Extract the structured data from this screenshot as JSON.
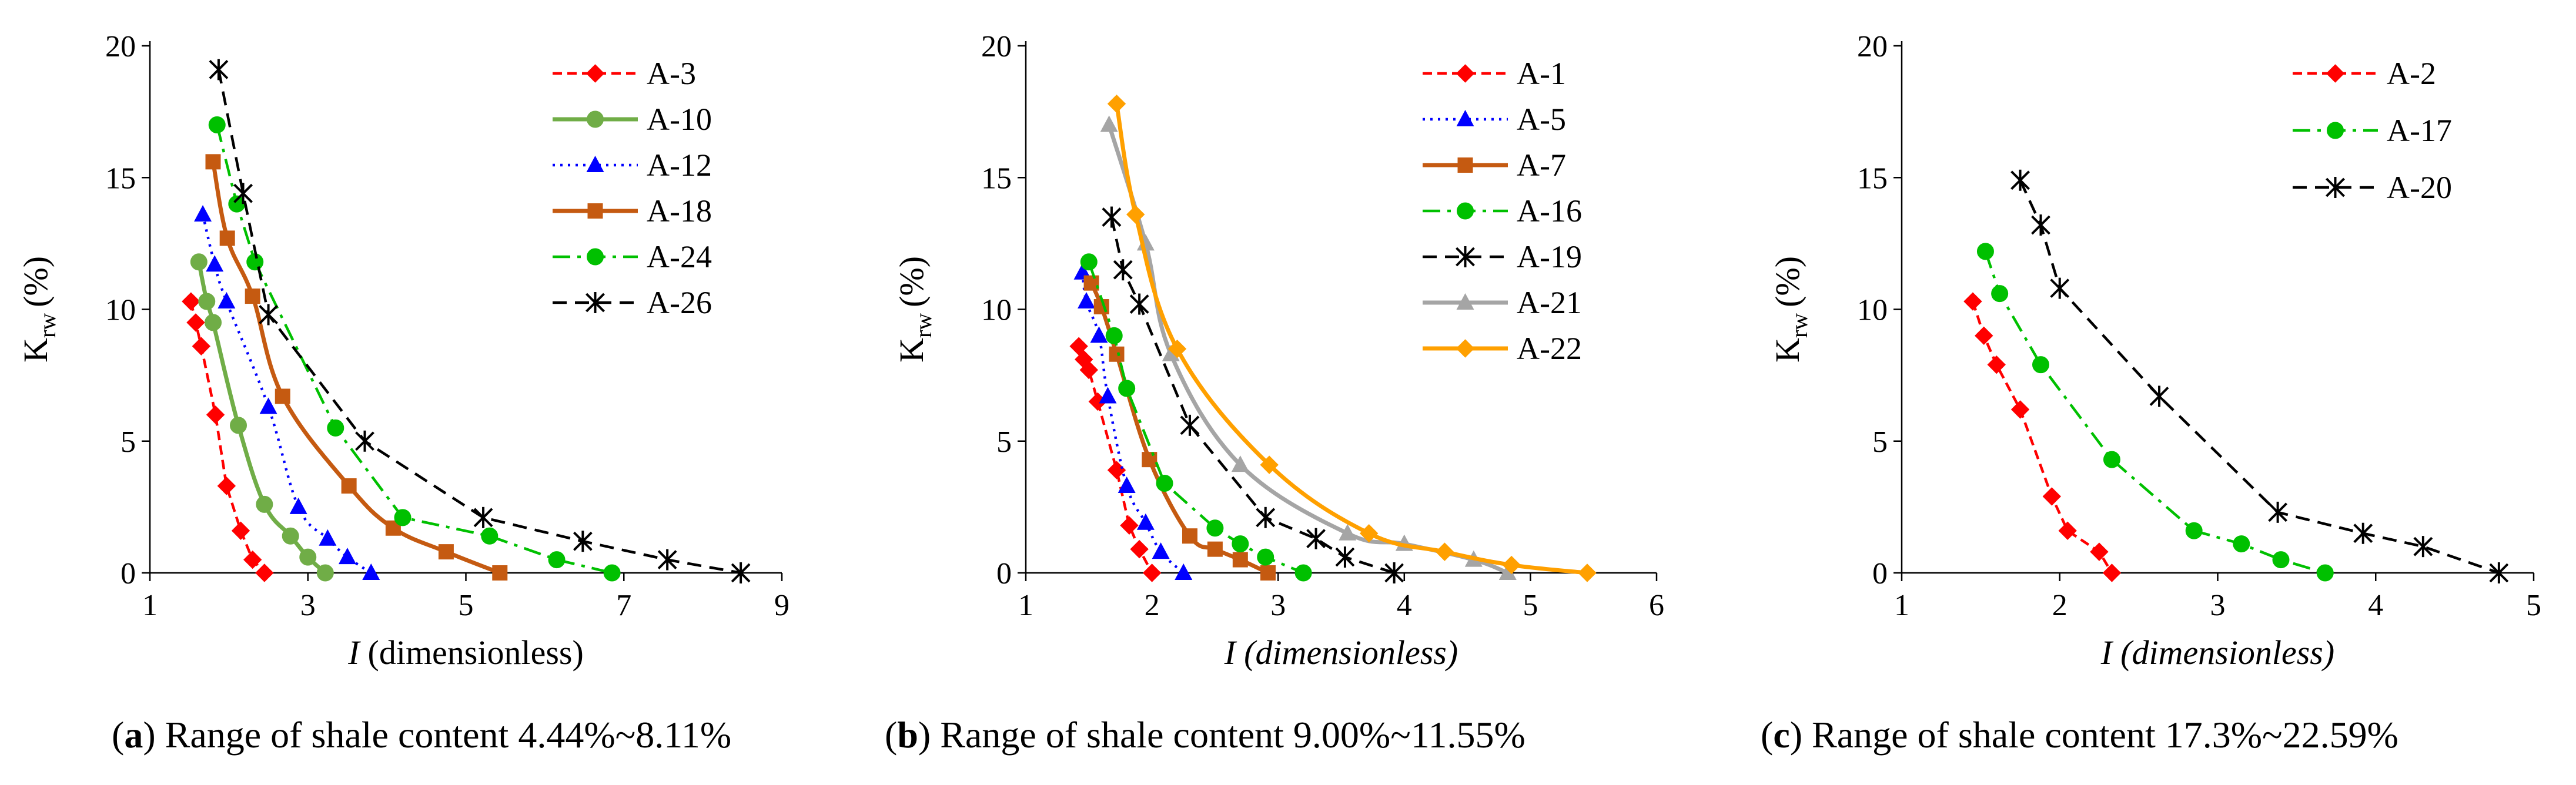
{
  "chart_data": [
    {
      "type": "line",
      "panel": "a",
      "caption_letter": "a",
      "caption_text": "Range of shale content 4.44%~8.11%",
      "ylabel": "K",
      "ylabel_sub": "rw",
      "ylabel_unit": "(%)",
      "xlabel_var": "I",
      "xlabel_rest": "(dimensionless)",
      "xlabel_italic_rest": false,
      "xlim": [
        1,
        9
      ],
      "ylim": [
        0,
        20
      ],
      "xticks": [
        1,
        3,
        5,
        7,
        9
      ],
      "yticks": [
        0,
        5,
        10,
        15,
        20
      ],
      "legend_position": "top-right",
      "series": [
        {
          "name": "A-3",
          "color": "#ff0000",
          "dash": "dash-short",
          "marker": "diamond",
          "smooth": false,
          "x": [
            1.52,
            1.58,
            1.65,
            1.83,
            1.97,
            2.15,
            2.3,
            2.45
          ],
          "y": [
            10.3,
            9.5,
            8.6,
            6.0,
            3.3,
            1.6,
            0.5,
            0.0
          ]
        },
        {
          "name": "A-10",
          "color": "#70ad47",
          "dash": "solid",
          "marker": "circle",
          "smooth": true,
          "x": [
            1.62,
            1.72,
            1.8,
            2.12,
            2.45,
            2.78,
            3.0,
            3.22
          ],
          "y": [
            11.8,
            10.3,
            9.5,
            5.6,
            2.6,
            1.4,
            0.6,
            0.0
          ]
        },
        {
          "name": "A-12",
          "color": "#0000ff",
          "dash": "dotted",
          "marker": "triangle",
          "smooth": true,
          "x": [
            1.67,
            1.82,
            1.97,
            2.5,
            2.88,
            3.25,
            3.5,
            3.8
          ],
          "y": [
            13.6,
            11.7,
            10.3,
            6.3,
            2.5,
            1.3,
            0.6,
            0.0
          ]
        },
        {
          "name": "A-18",
          "color": "#c55a11",
          "dash": "solid",
          "marker": "square",
          "smooth": true,
          "x": [
            1.8,
            1.98,
            2.3,
            2.68,
            3.52,
            4.08,
            4.75,
            5.43
          ],
          "y": [
            15.6,
            12.7,
            10.5,
            6.7,
            3.3,
            1.7,
            0.8,
            0.0
          ]
        },
        {
          "name": "A-24",
          "color": "#00c000",
          "dash": "dashdot",
          "marker": "circle",
          "smooth": false,
          "x": [
            1.85,
            2.1,
            2.33,
            3.35,
            4.2,
            5.3,
            6.15,
            6.85
          ],
          "y": [
            17.0,
            14.0,
            11.8,
            5.5,
            2.1,
            1.4,
            0.5,
            0.0
          ]
        },
        {
          "name": "A-26",
          "color": "#000000",
          "dash": "dash-long",
          "marker": "asterisk",
          "smooth": false,
          "x": [
            1.87,
            2.18,
            2.5,
            3.72,
            5.22,
            6.48,
            7.55,
            8.48
          ],
          "y": [
            19.1,
            14.4,
            9.8,
            5.0,
            2.1,
            1.2,
            0.5,
            0.0
          ]
        }
      ]
    },
    {
      "type": "line",
      "panel": "b",
      "caption_letter": "b",
      "caption_text": "Range of shale content 9.00%~11.55%",
      "ylabel": "K",
      "ylabel_sub": "rw",
      "ylabel_unit": "(%)",
      "xlabel_var": "I",
      "xlabel_rest": "(dimensionless)",
      "xlabel_italic_rest": true,
      "xlim": [
        1,
        6
      ],
      "ylim": [
        0,
        20
      ],
      "xticks": [
        1,
        2,
        3,
        4,
        5,
        6
      ],
      "yticks": [
        0,
        5,
        10,
        15,
        20
      ],
      "legend_position": "top-right",
      "series": [
        {
          "name": "A-1",
          "color": "#ff0000",
          "dash": "dash-short",
          "marker": "diamond",
          "smooth": false,
          "x": [
            1.42,
            1.46,
            1.5,
            1.57,
            1.72,
            1.82,
            1.9,
            2.0
          ],
          "y": [
            8.6,
            8.1,
            7.7,
            6.5,
            3.9,
            1.8,
            0.9,
            0.0
          ]
        },
        {
          "name": "A-5",
          "color": "#0000ff",
          "dash": "dotted",
          "marker": "triangle",
          "smooth": true,
          "x": [
            1.45,
            1.48,
            1.58,
            1.65,
            1.8,
            1.95,
            2.07,
            2.25
          ],
          "y": [
            11.4,
            10.3,
            9.0,
            6.7,
            3.3,
            1.9,
            0.8,
            0.0
          ]
        },
        {
          "name": "A-7",
          "color": "#c55a11",
          "dash": "solid",
          "marker": "square",
          "smooth": true,
          "x": [
            1.52,
            1.6,
            1.72,
            1.98,
            2.3,
            2.5,
            2.7,
            2.92
          ],
          "y": [
            11.0,
            10.1,
            8.3,
            4.3,
            1.4,
            0.9,
            0.5,
            0.0
          ]
        },
        {
          "name": "A-16",
          "color": "#00c000",
          "dash": "dashdot",
          "marker": "circle",
          "smooth": false,
          "x": [
            1.5,
            1.7,
            1.8,
            2.1,
            2.5,
            2.7,
            2.9,
            3.2
          ],
          "y": [
            11.8,
            9.0,
            7.0,
            3.4,
            1.7,
            1.1,
            0.6,
            0.0
          ]
        },
        {
          "name": "A-19",
          "color": "#000000",
          "dash": "dash-long",
          "marker": "asterisk",
          "smooth": false,
          "x": [
            1.68,
            1.77,
            1.9,
            2.3,
            2.9,
            3.3,
            3.53,
            3.92
          ],
          "y": [
            13.5,
            11.5,
            10.2,
            5.6,
            2.1,
            1.3,
            0.6,
            0.0
          ]
        },
        {
          "name": "A-21",
          "color": "#a5a5a5",
          "dash": "solid",
          "marker": "triangle",
          "smooth": true,
          "x": [
            1.66,
            1.95,
            2.15,
            2.7,
            3.55,
            4.0,
            4.55,
            4.82
          ],
          "y": [
            17.0,
            12.5,
            8.3,
            4.1,
            1.5,
            1.1,
            0.5,
            0.0
          ]
        },
        {
          "name": "A-22",
          "color": "#ffa000",
          "dash": "solid",
          "marker": "diamond",
          "smooth": true,
          "x": [
            1.72,
            1.87,
            2.2,
            2.93,
            3.72,
            4.32,
            4.85,
            5.45
          ],
          "y": [
            17.8,
            13.6,
            8.5,
            4.1,
            1.5,
            0.8,
            0.3,
            0.0
          ]
        }
      ]
    },
    {
      "type": "line",
      "panel": "c",
      "caption_letter": "c",
      "caption_text": "Range of shale content 17.3%~22.59%",
      "ylabel": "K",
      "ylabel_sub": "rw",
      "ylabel_unit": "(%)",
      "xlabel_var": "I",
      "xlabel_rest": "(dimensionless)",
      "xlabel_italic_rest": true,
      "xlim": [
        1,
        5
      ],
      "ylim": [
        0,
        20
      ],
      "xticks": [
        1,
        2,
        3,
        4,
        5
      ],
      "yticks": [
        0,
        5,
        10,
        15,
        20
      ],
      "legend_position": "top-right",
      "series": [
        {
          "name": "A-2",
          "color": "#ff0000",
          "dash": "dash-short",
          "marker": "diamond",
          "smooth": false,
          "x": [
            1.45,
            1.52,
            1.6,
            1.75,
            1.95,
            2.05,
            2.25,
            2.33
          ],
          "y": [
            10.3,
            9.0,
            7.9,
            6.2,
            2.9,
            1.6,
            0.8,
            0.0
          ]
        },
        {
          "name": "A-17",
          "color": "#00c000",
          "dash": "dashdot",
          "marker": "circle",
          "smooth": false,
          "x": [
            1.53,
            1.62,
            1.88,
            2.33,
            2.85,
            3.15,
            3.4,
            3.68
          ],
          "y": [
            12.2,
            10.6,
            7.9,
            4.3,
            1.6,
            1.1,
            0.5,
            0.0
          ]
        },
        {
          "name": "A-20",
          "color": "#000000",
          "dash": "dash-long",
          "marker": "asterisk",
          "smooth": false,
          "x": [
            1.75,
            1.88,
            2.0,
            2.63,
            3.38,
            3.92,
            4.3,
            4.78
          ],
          "y": [
            14.9,
            13.2,
            10.8,
            6.7,
            2.3,
            1.5,
            1.0,
            0.0
          ]
        }
      ]
    }
  ]
}
